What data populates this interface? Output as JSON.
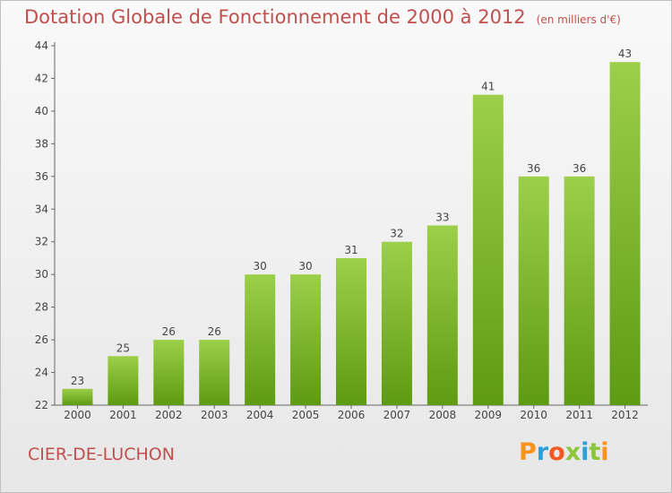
{
  "title": "Dotation Globale de Fonctionnement de 2000 à 2012",
  "subtitle": "(en milliers d'€)",
  "commune": "CIER-DE-LUCHON",
  "brand": {
    "letters": [
      "P",
      "r",
      "o",
      "x",
      "i",
      "t",
      "i"
    ],
    "colors": [
      "#f7931e",
      "#2e9fd8",
      "#f15a24",
      "#8cc63f",
      "#2e9fd8",
      "#8cc63f",
      "#f7931e"
    ]
  },
  "colors": {
    "bar_top": "#9ccf4a",
    "bar_bottom": "#5e9a12",
    "text": "#c0504d",
    "axis": "#666666"
  },
  "chart_data": {
    "type": "bar",
    "categories": [
      "2000",
      "2001",
      "2002",
      "2003",
      "2004",
      "2005",
      "2006",
      "2007",
      "2008",
      "2009",
      "2010",
      "2011",
      "2012"
    ],
    "values": [
      23,
      25,
      26,
      26,
      30,
      30,
      31,
      32,
      33,
      41,
      36,
      36,
      43
    ],
    "ylim": [
      22,
      44
    ],
    "yticks": [
      22,
      24,
      26,
      28,
      30,
      32,
      34,
      36,
      38,
      40,
      42,
      44
    ],
    "grid": false,
    "data_labels": true
  }
}
